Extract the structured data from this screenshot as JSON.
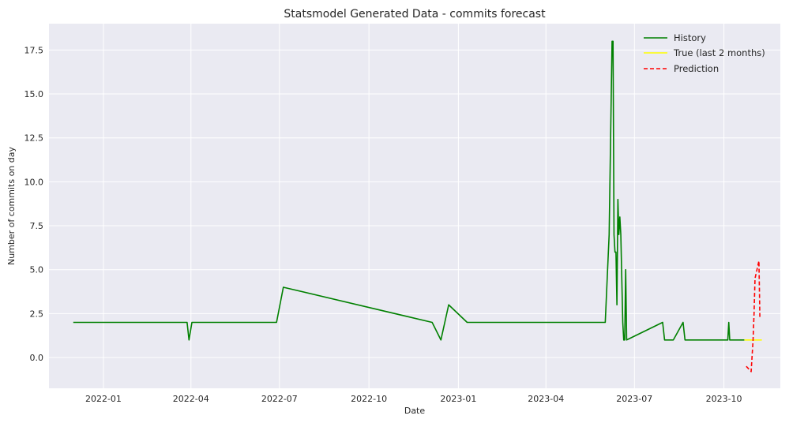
{
  "chart_data": {
    "type": "line",
    "title": "Statsmodel Generated Data - commits forecast",
    "xlabel": "Date",
    "ylabel": "Number of commits on day",
    "xlim": [
      "2021-11-06",
      "2023-11-28"
    ],
    "ylim": [
      -1.75,
      19.0
    ],
    "x_ticks": [
      "2022-01-01",
      "2022-04-01",
      "2022-07-01",
      "2022-10-01",
      "2023-01-01",
      "2023-04-01",
      "2023-07-01",
      "2023-10-01"
    ],
    "x_tick_labels": [
      "2022-01",
      "2022-04",
      "2022-07",
      "2022-10",
      "2023-01",
      "2023-04",
      "2023-07",
      "2023-10"
    ],
    "y_ticks": [
      0.0,
      2.5,
      5.0,
      7.5,
      10.0,
      12.5,
      15.0,
      17.5
    ],
    "y_tick_labels": [
      "0.0",
      "2.5",
      "5.0",
      "7.5",
      "10.0",
      "12.5",
      "15.0",
      "17.5"
    ],
    "grid": true,
    "legend_position": "top-right",
    "colors": {
      "background": "#EAEAF2",
      "grid": "#FFFFFF",
      "history": "#008000",
      "true": "#FFFF00",
      "prediction": "#FF0000"
    },
    "series": [
      {
        "name": "History",
        "style": "solid",
        "color": "#008000",
        "points": [
          [
            "2021-12-01",
            2
          ],
          [
            "2022-03-28",
            2
          ],
          [
            "2022-03-30",
            1
          ],
          [
            "2022-04-02",
            2
          ],
          [
            "2022-06-28",
            2
          ],
          [
            "2022-07-05",
            4
          ],
          [
            "2022-12-05",
            2
          ],
          [
            "2022-12-14",
            1
          ],
          [
            "2022-12-22",
            3
          ],
          [
            "2023-01-10",
            2
          ],
          [
            "2023-06-01",
            2
          ],
          [
            "2023-06-05",
            7
          ],
          [
            "2023-06-08",
            18
          ],
          [
            "2023-06-09",
            18
          ],
          [
            "2023-06-10",
            7
          ],
          [
            "2023-06-11",
            6
          ],
          [
            "2023-06-12",
            6
          ],
          [
            "2023-06-13",
            3
          ],
          [
            "2023-06-14",
            9
          ],
          [
            "2023-06-15",
            7
          ],
          [
            "2023-06-16",
            8
          ],
          [
            "2023-06-17",
            7
          ],
          [
            "2023-06-19",
            2
          ],
          [
            "2023-06-20",
            1
          ],
          [
            "2023-06-21",
            1
          ],
          [
            "2023-06-22",
            5
          ],
          [
            "2023-06-23",
            1
          ],
          [
            "2023-07-30",
            2
          ],
          [
            "2023-08-01",
            1
          ],
          [
            "2023-08-10",
            1
          ],
          [
            "2023-08-20",
            2
          ],
          [
            "2023-08-22",
            1
          ],
          [
            "2023-10-05",
            1
          ],
          [
            "2023-10-06",
            2
          ],
          [
            "2023-10-07",
            1
          ],
          [
            "2023-10-22",
            1
          ]
        ]
      },
      {
        "name": "True (last 2 months)",
        "style": "solid",
        "color": "#FFFF00",
        "points": [
          [
            "2023-10-22",
            1
          ],
          [
            "2023-10-25",
            1
          ],
          [
            "2023-10-30",
            1
          ],
          [
            "2023-11-04",
            1
          ],
          [
            "2023-11-09",
            1
          ]
        ]
      },
      {
        "name": "Prediction",
        "style": "dashed",
        "color": "#FF0000",
        "points": [
          [
            "2023-10-24",
            -0.5
          ],
          [
            "2023-10-29",
            -0.8
          ],
          [
            "2023-10-31",
            1.0
          ],
          [
            "2023-11-01",
            2.5
          ],
          [
            "2023-11-02",
            4.5
          ],
          [
            "2023-11-04",
            5.0
          ],
          [
            "2023-11-06",
            5.5
          ],
          [
            "2023-11-07",
            2.2
          ]
        ]
      }
    ]
  }
}
